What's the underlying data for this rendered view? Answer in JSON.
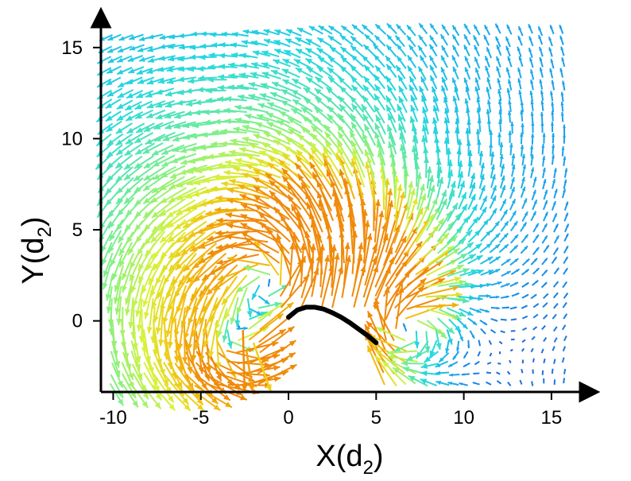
{
  "chart_data": {
    "type": "quiver",
    "xlabel_main": "X(d",
    "xlabel_sub": "2",
    "xlabel_close": ")",
    "ylabel_main": "Y(d",
    "ylabel_sub": "2",
    "ylabel_close": ")",
    "xlim": [
      -10.7,
      16.5
    ],
    "ylim": [
      -3.9,
      16.3
    ],
    "x_ticks": [
      -10,
      -5,
      0,
      5,
      10,
      15
    ],
    "x_tick_labels": [
      "-10",
      "-5",
      "0",
      "5",
      "10",
      "15"
    ],
    "y_ticks": [
      0,
      5,
      10,
      15
    ],
    "y_tick_labels": [
      "0",
      "5",
      "10",
      "15"
    ],
    "grid": false,
    "colormap": [
      "#1f5cd6",
      "#1aa0ee",
      "#25d8e0",
      "#7df08a",
      "#d8f23c",
      "#f2c410",
      "#f08a0a"
    ],
    "body_curve": {
      "color": "#000000",
      "x": [
        0.0,
        0.5,
        1.0,
        1.5,
        2.0,
        2.5,
        3.0,
        3.5,
        4.0,
        4.5,
        5.0
      ],
      "y": [
        0.2,
        0.6,
        0.75,
        0.75,
        0.65,
        0.45,
        0.2,
        -0.1,
        -0.45,
        -0.8,
        -1.2
      ]
    },
    "highlight_arrows": [
      {
        "x": -2.6,
        "y": -0.5,
        "u": 0.1,
        "v": -3.4,
        "color": "#f08a0a"
      },
      {
        "x": -2.4,
        "y": -1.6,
        "u": 0.35,
        "v": -2.3,
        "color": "#f2a010"
      },
      {
        "x": -2.0,
        "y": -1.2,
        "u": 1.0,
        "v": -2.7,
        "color": "#f2d014"
      }
    ]
  }
}
